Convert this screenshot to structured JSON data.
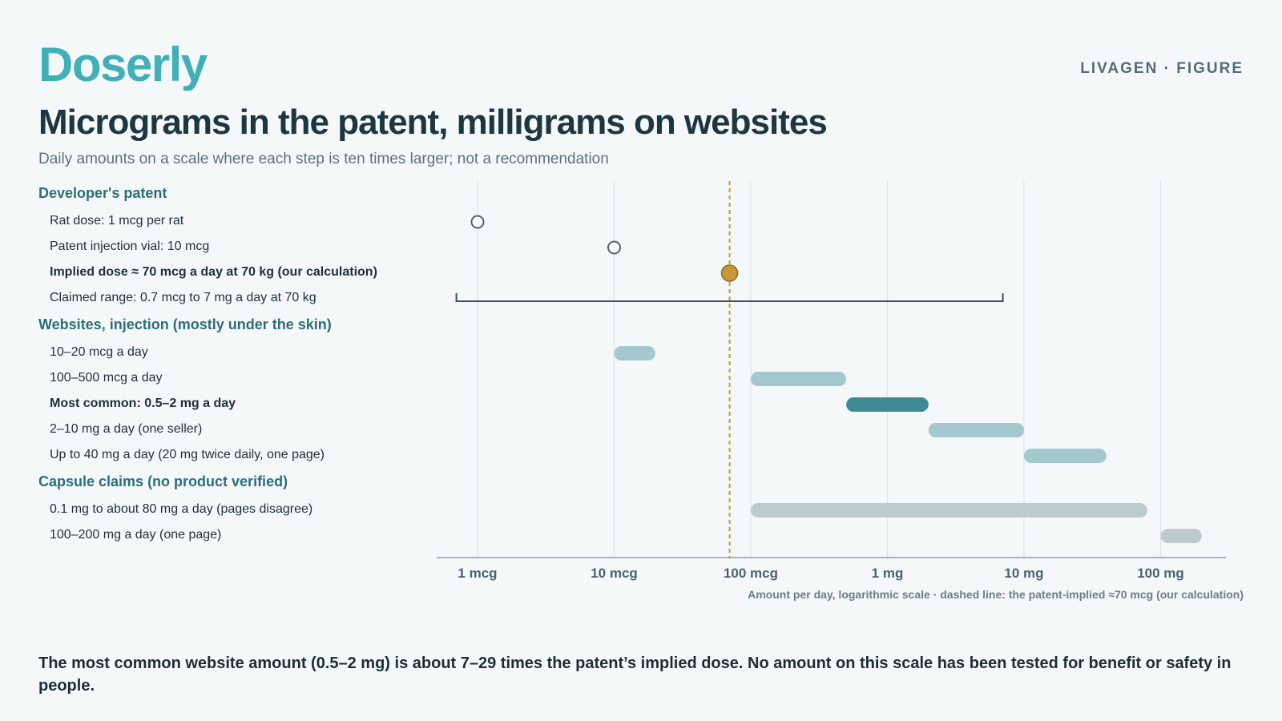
{
  "brand": {
    "name": "Doserly",
    "tag": "LIVAGEN · FIGURE"
  },
  "header": {
    "title": "Micrograms in the patent, milligrams on websites",
    "subtitle": "Daily amounts on a scale where each step is ten times larger; not a recommendation"
  },
  "footer": {
    "axis_note": "Amount per day, logarithmic scale · dashed line: the patent-implied ≈70 mcg (our calculation)",
    "takeaway": "The most common website amount (0.5–2 mg) is about 7–29 times the patent’s implied dose. No amount on this scale has been tested for benefit or safety in people."
  },
  "colors": {
    "brand": "#3fb0b7",
    "group_heading": "#2c6e78",
    "highlight_marker": "#c9963a",
    "bar_light": "#a3c8cd",
    "bar_dark": "#3f8a93",
    "bar_capsule": "#bccacc",
    "reference_line": "#c9963a"
  },
  "chart_data": {
    "type": "range",
    "unit": "mcg per day",
    "x_scale": "log",
    "xlim": [
      0.7,
      200000
    ],
    "x_ticks": [
      {
        "value": 1,
        "label": "1 mcg"
      },
      {
        "value": 10,
        "label": "10 mcg"
      },
      {
        "value": 100,
        "label": "100 mcg"
      },
      {
        "value": 1000,
        "label": "1 mg"
      },
      {
        "value": 10000,
        "label": "10 mg"
      },
      {
        "value": 100000,
        "label": "100 mg"
      }
    ],
    "grid": true,
    "reference_line": {
      "value": 70
    },
    "groups": [
      {
        "label": "Developer's patent",
        "rows": [
          {
            "label": "Rat dose: 1 mcg per rat",
            "kind": "point",
            "value": 1,
            "style": "open"
          },
          {
            "label": "Patent injection vial: 10 mcg",
            "kind": "point",
            "value": 10,
            "style": "open"
          },
          {
            "label": "Implied dose ≈ 70 mcg a day at 70 kg (our calculation)",
            "kind": "point",
            "value": 70,
            "style": "highlight",
            "bold": true
          },
          {
            "label": "Claimed range: 0.7 mcg to 7 mg a day at 70 kg",
            "kind": "bracket",
            "low": 0.7,
            "high": 7000
          }
        ]
      },
      {
        "label": "Websites, injection (mostly under the skin)",
        "rows": [
          {
            "label": "10–20 mcg a day",
            "kind": "bar",
            "low": 10,
            "high": 20,
            "style": "light"
          },
          {
            "label": "100–500 mcg a day",
            "kind": "bar",
            "low": 100,
            "high": 500,
            "style": "light"
          },
          {
            "label": "Most common: 0.5–2 mg a day",
            "kind": "bar",
            "low": 500,
            "high": 2000,
            "style": "dark",
            "bold": true
          },
          {
            "label": "2–10 mg a day (one seller)",
            "kind": "bar",
            "low": 2000,
            "high": 10000,
            "style": "light"
          },
          {
            "label": "Up to 40 mg a day (20 mg twice daily, one page)",
            "kind": "bar",
            "low": 10000,
            "high": 40000,
            "style": "light"
          }
        ]
      },
      {
        "label": "Capsule claims (no product verified)",
        "rows": [
          {
            "label": "0.1 mg to about 80 mg a day (pages disagree)",
            "kind": "bar",
            "low": 100,
            "high": 80000,
            "style": "capsule"
          },
          {
            "label": "100–200 mg a day (one page)",
            "kind": "bar",
            "low": 100000,
            "high": 200000,
            "style": "capsule"
          }
        ]
      }
    ]
  }
}
